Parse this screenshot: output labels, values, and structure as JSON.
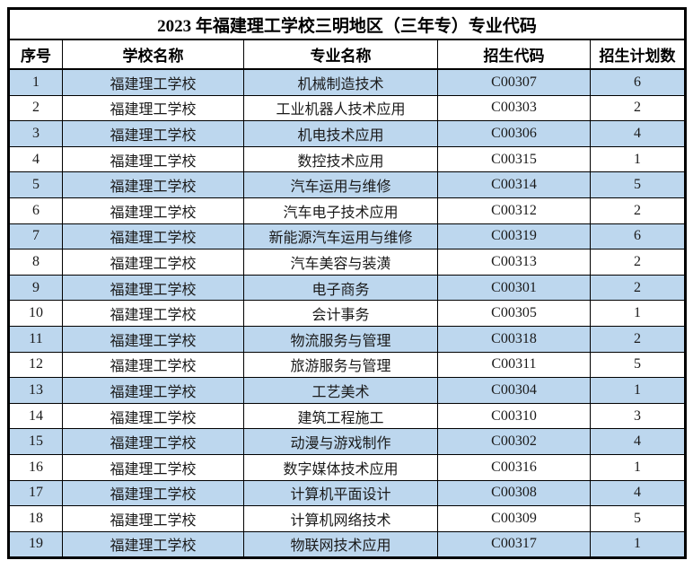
{
  "chart_data": {
    "type": "table",
    "title": "2023 年福建理工学校三明地区（三年专）专业代码",
    "columns": [
      "序号",
      "学校名称",
      "专业名称",
      "招生代码",
      "招生计划数"
    ],
    "rows": [
      [
        "1",
        "福建理工学校",
        "机械制造技术",
        "C00307",
        "6"
      ],
      [
        "2",
        "福建理工学校",
        "工业机器人技术应用",
        "C00303",
        "2"
      ],
      [
        "3",
        "福建理工学校",
        "机电技术应用",
        "C00306",
        "4"
      ],
      [
        "4",
        "福建理工学校",
        "数控技术应用",
        "C00315",
        "1"
      ],
      [
        "5",
        "福建理工学校",
        "汽车运用与维修",
        "C00314",
        "5"
      ],
      [
        "6",
        "福建理工学校",
        "汽车电子技术应用",
        "C00312",
        "2"
      ],
      [
        "7",
        "福建理工学校",
        "新能源汽车运用与维修",
        "C00319",
        "6"
      ],
      [
        "8",
        "福建理工学校",
        "汽车美容与装潢",
        "C00313",
        "2"
      ],
      [
        "9",
        "福建理工学校",
        "电子商务",
        "C00301",
        "2"
      ],
      [
        "10",
        "福建理工学校",
        "会计事务",
        "C00305",
        "1"
      ],
      [
        "11",
        "福建理工学校",
        "物流服务与管理",
        "C00318",
        "2"
      ],
      [
        "12",
        "福建理工学校",
        "旅游服务与管理",
        "C00311",
        "5"
      ],
      [
        "13",
        "福建理工学校",
        "工艺美术",
        "C00304",
        "1"
      ],
      [
        "14",
        "福建理工学校",
        "建筑工程施工",
        "C00310",
        "3"
      ],
      [
        "15",
        "福建理工学校",
        "动漫与游戏制作",
        "C00302",
        "4"
      ],
      [
        "16",
        "福建理工学校",
        "数字媒体技术应用",
        "C00316",
        "1"
      ],
      [
        "17",
        "福建理工学校",
        "计算机平面设计",
        "C00308",
        "4"
      ],
      [
        "18",
        "福建理工学校",
        "计算机网络技术",
        "C00309",
        "5"
      ],
      [
        "19",
        "福建理工学校",
        "物联网技术应用",
        "C00317",
        "1"
      ]
    ],
    "layout": {
      "zebra": "odd data rows highlighted",
      "legend_position": "none",
      "grid": "on"
    },
    "colors": {
      "zebra_row_bg": "#BDD7EE",
      "plain_row_bg": "#FFFFFF",
      "border": "#000000",
      "text": "#1A1A1A"
    }
  }
}
